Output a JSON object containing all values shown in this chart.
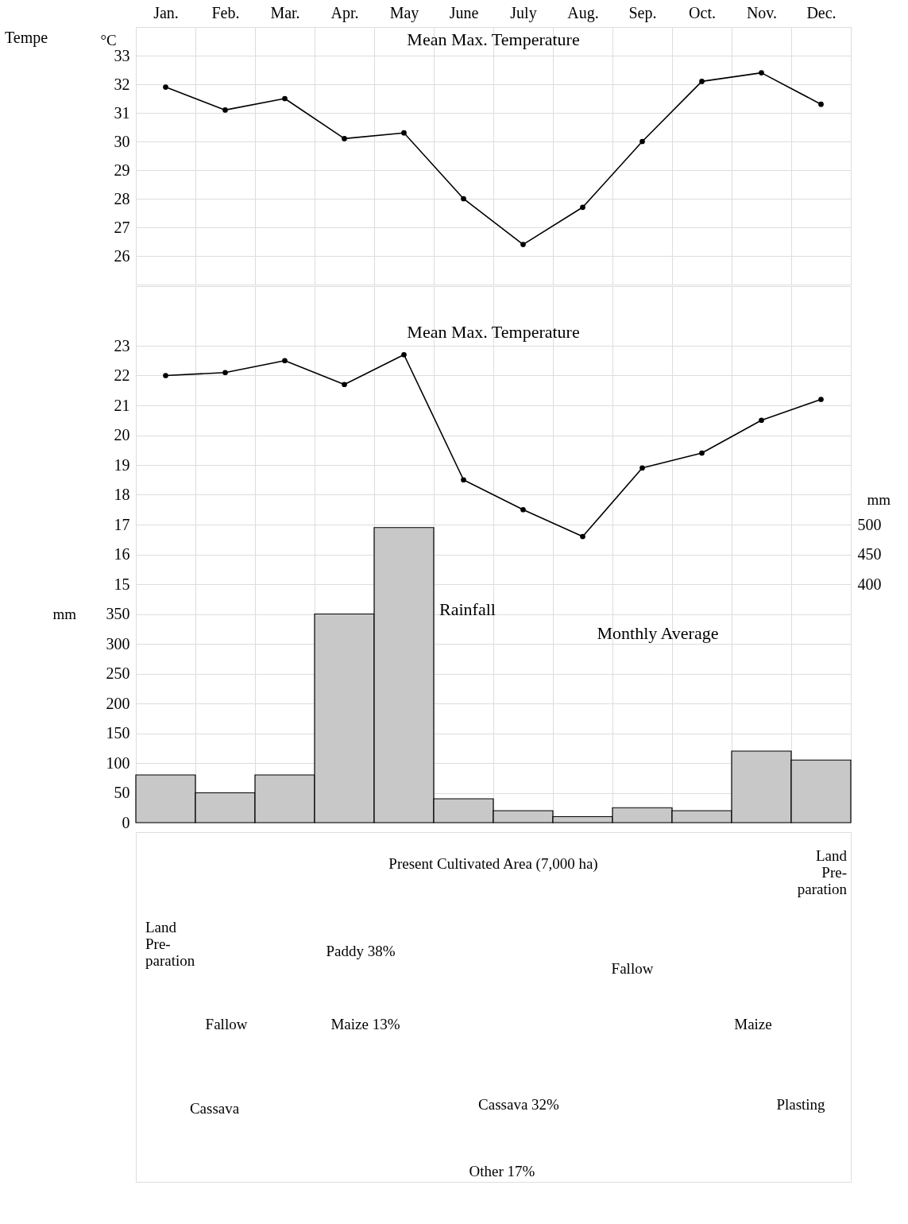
{
  "chart_data": [
    {
      "type": "line",
      "ylabel": "°C",
      "annotations": [
        "Tempe"
      ],
      "categories": [
        "Jan.",
        "Feb.",
        "Mar.",
        "Apr.",
        "May",
        "June",
        "July",
        "Aug.",
        "Sep.",
        "Oct.",
        "Nov.",
        "Dec."
      ],
      "series": [
        {
          "name": "Mean Max. Temperature",
          "color": "#000000",
          "values": [
            31.9,
            31.1,
            31.5,
            30.1,
            30.3,
            28.0,
            26.4,
            27.7,
            30.0,
            32.1,
            32.4,
            31.3
          ]
        }
      ],
      "ylim": [
        25,
        34
      ],
      "yticks": [
        26,
        27,
        28,
        29,
        30,
        31,
        32,
        33
      ],
      "grid": true,
      "marker": "circle",
      "line_style": "solid"
    },
    {
      "type": "line",
      "tick_labels": "y",
      "categories": [
        null,
        null,
        null,
        null,
        null,
        null,
        null,
        null,
        null,
        null,
        null,
        null
      ],
      "series": [
        {
          "type": "bar",
          "color": "#c8c8c8",
          "axis": "y2",
          "values": [
            80,
            50,
            80,
            350,
            495,
            40,
            20,
            10,
            25,
            20,
            120,
            105
          ]
        },
        {
          "name": "Mean Max. Temperature",
          "color": "#000000",
          "axis": "y",
          "values": [
            22.0,
            22.1,
            22.5,
            21.7,
            22.7,
            18.5,
            17.5,
            16.6,
            18.9,
            19.4,
            20.5,
            21.2
          ]
        }
      ],
      "ylim": [
        7,
        25
      ],
      "yticks": [
        15,
        16,
        17,
        18,
        19,
        20,
        21,
        22,
        23
      ],
      "y2lim": [
        0,
        900
      ],
      "y2ticks": [
        0,
        50,
        100,
        150,
        200,
        250,
        300,
        350
      ],
      "y2label": "mm",
      "y3lim": [
        0,
        900
      ],
      "y3ticks": [
        400,
        450,
        500
      ],
      "y3label": "mm",
      "annotations": [
        "Rainfall",
        "Monthly Average"
      ],
      "grid": true,
      "marker": "circle",
      "line_style": "solid"
    },
    {
      "type": "other",
      "annotations": [
        "Present Cultivated Area (7,000 ha)",
        "Land Pre- paration",
        "Paddy 38%",
        "Fallow",
        "Land Pre- paration",
        "Fallow",
        "Maize 13%",
        "Maize",
        "Cassava",
        "Cassava 32%",
        "Plasting",
        "Other 17%"
      ]
    }
  ]
}
